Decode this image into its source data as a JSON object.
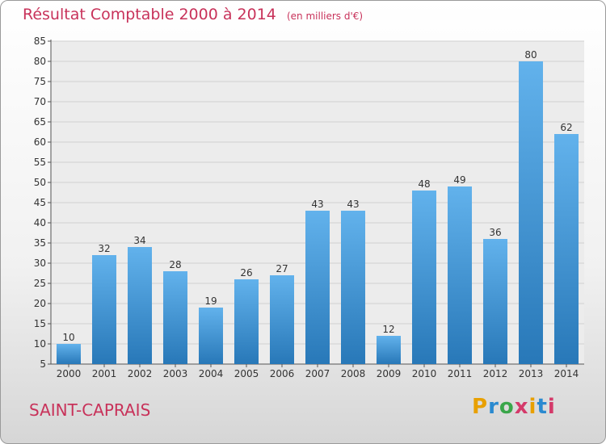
{
  "header": {
    "title": "Résultat Comptable 2000 à 2014",
    "subtitle": "(en milliers d'€)"
  },
  "footer": {
    "city": "SAINT-CAPRAIS",
    "logo": [
      "P",
      "r",
      "o",
      "x",
      "i",
      "t",
      "i"
    ],
    "logo_colors": [
      "#e8a000",
      "#2a8ad0",
      "#3aa64a",
      "#d43a6a",
      "#e8a000",
      "#2a8ad0",
      "#d43a6a"
    ]
  },
  "colors": {
    "bar_top": "#62b2ec",
    "bar_bottom": "#2878b8",
    "accent": "#c8325a"
  },
  "chart_data": {
    "type": "bar",
    "categories": [
      "2000",
      "2001",
      "2002",
      "2003",
      "2004",
      "2005",
      "2006",
      "2007",
      "2008",
      "2009",
      "2010",
      "2011",
      "2012",
      "2013",
      "2014"
    ],
    "values": [
      10,
      32,
      34,
      28,
      19,
      26,
      27,
      43,
      43,
      12,
      48,
      49,
      36,
      80,
      62
    ],
    "title": "Résultat Comptable 2000 à 2014",
    "subtitle": "(en milliers d'€)",
    "xlabel": "",
    "ylabel": "",
    "ylim": [
      5,
      85
    ],
    "yticks": [
      5,
      10,
      15,
      20,
      25,
      30,
      35,
      40,
      45,
      50,
      55,
      60,
      65,
      70,
      75,
      80,
      85
    ],
    "grid": true,
    "data_labels": true
  }
}
